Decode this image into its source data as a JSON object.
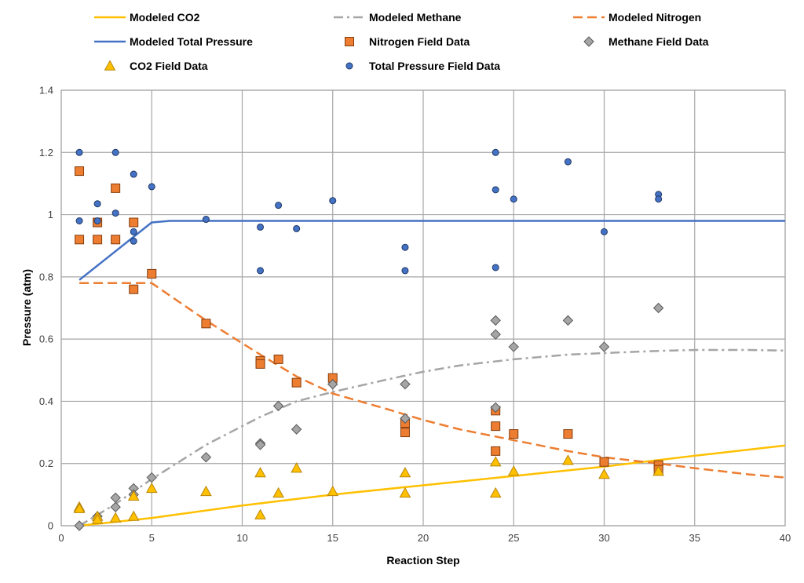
{
  "chart_data": {
    "type": "scatter",
    "xlabel": "Reaction Step",
    "ylabel": "Pressure (atm)",
    "xlim": [
      0,
      40
    ],
    "ylim": [
      0,
      1.4
    ],
    "xticks": [
      0,
      5,
      10,
      15,
      20,
      25,
      30,
      35,
      40
    ],
    "yticks": [
      0,
      0.2,
      0.4,
      0.6,
      0.8,
      1,
      1.2,
      1.4
    ],
    "x_tick_labels": [
      "0",
      "5",
      "10",
      "15",
      "20",
      "25",
      "30",
      "35",
      "40"
    ],
    "y_tick_labels": [
      "0",
      "0.2",
      "0.4",
      "0.6",
      "0.8",
      "1",
      "1.2",
      "1.4"
    ],
    "grid": true,
    "legend_position": "top",
    "colors": {
      "co2": "#FFC000",
      "methane_line": "#A5A5A5",
      "methane_marker": "#808080",
      "nitrogen": "#ED7D31",
      "total": "#4472C4"
    },
    "series": [
      {
        "name": "Modeled CO2",
        "kind": "line",
        "style": "solid",
        "color": "#FFC000",
        "x": [
          1,
          5,
          10,
          15,
          20,
          25,
          30,
          35,
          40
        ],
        "y": [
          0.0,
          0.025,
          0.065,
          0.1,
          0.13,
          0.16,
          0.19,
          0.225,
          0.258
        ]
      },
      {
        "name": "Modeled Methane",
        "kind": "line",
        "style": "dashdot",
        "color": "#A5A5A5",
        "x": [
          1,
          3,
          5,
          8,
          11,
          13,
          15,
          18,
          20,
          22,
          25,
          28,
          30,
          33,
          35,
          38,
          40
        ],
        "y": [
          0.0,
          0.07,
          0.15,
          0.26,
          0.35,
          0.4,
          0.43,
          0.47,
          0.495,
          0.515,
          0.535,
          0.55,
          0.555,
          0.562,
          0.565,
          0.565,
          0.563
        ]
      },
      {
        "name": "Modeled Nitrogen",
        "kind": "line",
        "style": "dashed",
        "color": "#ED7D31",
        "x": [
          1,
          4,
          5,
          8,
          11,
          13,
          15,
          18,
          20,
          22,
          25,
          28,
          30,
          33,
          35,
          38,
          40
        ],
        "y": [
          0.78,
          0.78,
          0.78,
          0.66,
          0.55,
          0.48,
          0.425,
          0.375,
          0.34,
          0.31,
          0.275,
          0.24,
          0.22,
          0.2,
          0.185,
          0.165,
          0.155
        ]
      },
      {
        "name": "Modeled Total Pressure",
        "kind": "line",
        "style": "solid",
        "color": "#4472C4",
        "x": [
          1,
          5,
          6,
          10,
          15,
          20,
          25,
          30,
          35,
          40
        ],
        "y": [
          0.79,
          0.975,
          0.98,
          0.98,
          0.98,
          0.98,
          0.98,
          0.98,
          0.98,
          0.98
        ]
      },
      {
        "name": "Nitrogen Field Data",
        "kind": "marker",
        "marker": "square",
        "color": "#ED7D31",
        "x": [
          1,
          1,
          2,
          2,
          3,
          3,
          4,
          4,
          5,
          8,
          11,
          11,
          12,
          13,
          15,
          19,
          19,
          24,
          24,
          24,
          25,
          28,
          30,
          33,
          33
        ],
        "y": [
          1.14,
          0.92,
          0.975,
          0.92,
          1.085,
          0.92,
          0.975,
          0.76,
          0.81,
          0.65,
          0.53,
          0.52,
          0.535,
          0.46,
          0.475,
          0.33,
          0.3,
          0.37,
          0.32,
          0.24,
          0.295,
          0.295,
          0.205,
          0.195,
          0.18
        ]
      },
      {
        "name": "Methane Field Data",
        "kind": "marker",
        "marker": "diamond",
        "color": "#A5A5A5",
        "x": [
          1,
          2,
          3,
          3,
          4,
          4,
          5,
          8,
          11,
          11,
          12,
          13,
          15,
          19,
          19,
          24,
          24,
          24,
          25,
          28,
          30,
          33
        ],
        "y": [
          0.0,
          0.03,
          0.09,
          0.06,
          0.12,
          0.1,
          0.155,
          0.22,
          0.265,
          0.26,
          0.385,
          0.31,
          0.455,
          0.455,
          0.345,
          0.66,
          0.615,
          0.38,
          0.575,
          0.66,
          0.575,
          0.7
        ]
      },
      {
        "name": "CO2 Field Data",
        "kind": "marker",
        "marker": "triangle",
        "color": "#FFC000",
        "x": [
          1,
          1,
          2,
          2,
          3,
          4,
          4,
          5,
          8,
          11,
          11,
          12,
          13,
          15,
          19,
          19,
          24,
          24,
          25,
          28,
          30,
          33
        ],
        "y": [
          0.06,
          0.055,
          0.03,
          0.02,
          0.025,
          0.095,
          0.03,
          0.12,
          0.11,
          0.17,
          0.035,
          0.105,
          0.185,
          0.11,
          0.17,
          0.105,
          0.205,
          0.105,
          0.175,
          0.21,
          0.165,
          0.175
        ]
      },
      {
        "name": "Total Pressure Field Data",
        "kind": "marker",
        "marker": "circle",
        "color": "#4472C4",
        "x": [
          1,
          1,
          2,
          2,
          3,
          3,
          4,
          4,
          4,
          5,
          8,
          11,
          11,
          12,
          13,
          15,
          19,
          19,
          24,
          24,
          24,
          25,
          28,
          30,
          33,
          33
        ],
        "y": [
          1.2,
          0.98,
          1.035,
          0.98,
          1.2,
          1.005,
          1.13,
          0.945,
          0.915,
          1.09,
          0.985,
          0.96,
          0.82,
          1.03,
          0.955,
          1.045,
          0.895,
          0.82,
          1.2,
          1.08,
          0.83,
          1.05,
          1.17,
          0.945,
          1.065,
          1.05
        ]
      }
    ]
  }
}
